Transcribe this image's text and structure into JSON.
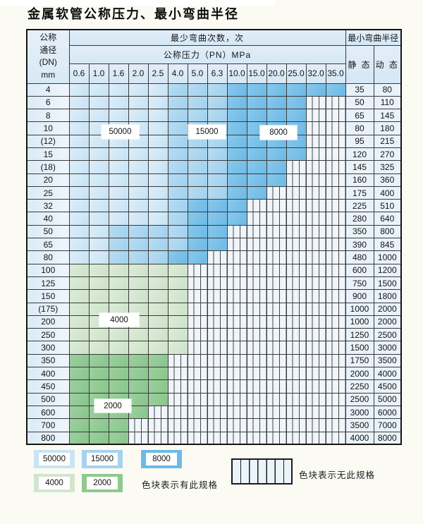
{
  "title": "金属软管公称压力、最小弯曲半径",
  "table": {
    "header": {
      "dn_lines": [
        "公称",
        "通径",
        "(DN)",
        "mm"
      ],
      "bend_cycles_label": "最少弯曲次数，次",
      "pressure_label": "公称压力（PN）MPa",
      "radius_label": "最小弯曲半径",
      "static_label": "静 态",
      "dynamic_label": "动 态",
      "pressure_columns": [
        "0.6",
        "1.0",
        "1.6",
        "2.0",
        "2.5",
        "4.0",
        "5.0",
        "6.3",
        "10.0",
        "15.0",
        "20.0",
        "25.0",
        "32.0",
        "35.0"
      ]
    },
    "zone_codes": {
      "a": "cycles_50000",
      "b": "cycles_15000",
      "c": "cycles_8000",
      "d": "cycles_4000",
      "e": "cycles_2000",
      "x": "no_spec"
    },
    "rows": [
      {
        "dn": "4",
        "cells": "aaaaabbbcccccc",
        "static": "35",
        "dynamic": "80"
      },
      {
        "dn": "6",
        "cells": "aaaaabbbccccxx",
        "static": "50",
        "dynamic": "110"
      },
      {
        "dn": "8",
        "cells": "aaaaabbbccccxx",
        "static": "65",
        "dynamic": "145"
      },
      {
        "dn": "10",
        "cells": "aaaaabbbccccxx",
        "static": "80",
        "dynamic": "180"
      },
      {
        "dn": "(12)",
        "cells": "aaaaabbbccccxx",
        "static": "95",
        "dynamic": "215"
      },
      {
        "dn": "15",
        "cells": "aaaaabbbccccxx",
        "static": "120",
        "dynamic": "270"
      },
      {
        "dn": "(18)",
        "cells": "aaaaabbbcccxxx",
        "static": "145",
        "dynamic": "325"
      },
      {
        "dn": "20",
        "cells": "aaaaabbbcccxxx",
        "static": "160",
        "dynamic": "360"
      },
      {
        "dn": "25",
        "cells": "aaaaabbbccxxxx",
        "static": "175",
        "dynamic": "400"
      },
      {
        "dn": "32",
        "cells": "aaaaabcccxxxxx",
        "static": "225",
        "dynamic": "510"
      },
      {
        "dn": "40",
        "cells": "aaaaabcccxxxxx",
        "static": "280",
        "dynamic": "640"
      },
      {
        "dn": "50",
        "cells": "aabbbbccxxxxxx",
        "static": "350",
        "dynamic": "800"
      },
      {
        "dn": "65",
        "cells": "aabbbbccxxxxxx",
        "static": "390",
        "dynamic": "845"
      },
      {
        "dn": "80",
        "cells": "aabbbccxxxxxxx",
        "static": "480",
        "dynamic": "1000"
      },
      {
        "dn": "100",
        "cells": "ddddddxxxxxxxx",
        "static": "600",
        "dynamic": "1200"
      },
      {
        "dn": "125",
        "cells": "ddddddxxxxxxxx",
        "static": "750",
        "dynamic": "1500"
      },
      {
        "dn": "150",
        "cells": "ddddddxxxxxxxx",
        "static": "900",
        "dynamic": "1800"
      },
      {
        "dn": "(175)",
        "cells": "ddddddxxxxxxxx",
        "static": "1000",
        "dynamic": "2000"
      },
      {
        "dn": "200",
        "cells": "ddddddxxxxxxxx",
        "static": "1000",
        "dynamic": "2000"
      },
      {
        "dn": "250",
        "cells": "ddddddxxxxxxxx",
        "static": "1250",
        "dynamic": "2500"
      },
      {
        "dn": "300",
        "cells": "ddddddxxxxxxxx",
        "static": "1500",
        "dynamic": "3000"
      },
      {
        "dn": "350",
        "cells": "eeeeexxxxxxxxx",
        "static": "1750",
        "dynamic": "3500"
      },
      {
        "dn": "400",
        "cells": "eeeeexxxxxxxxx",
        "static": "2000",
        "dynamic": "4000"
      },
      {
        "dn": "450",
        "cells": "eeeeexxxxxxxxx",
        "static": "2250",
        "dynamic": "4500"
      },
      {
        "dn": "500",
        "cells": "eeeeexxxxxxxxx",
        "static": "2500",
        "dynamic": "5000"
      },
      {
        "dn": "600",
        "cells": "eeeexxxxxxxxxx",
        "static": "3000",
        "dynamic": "6000"
      },
      {
        "dn": "700",
        "cells": "eeexxxxxxxxxxx",
        "static": "3500",
        "dynamic": "7000"
      },
      {
        "dn": "800",
        "cells": "eeexxxxxxxxxxx",
        "static": "4000",
        "dynamic": "8000"
      }
    ]
  },
  "overlays": [
    {
      "text": "50000"
    },
    {
      "text": "15000"
    },
    {
      "text": "8000"
    },
    {
      "text": "4000"
    },
    {
      "text": "2000"
    }
  ],
  "legend": {
    "items": [
      {
        "value": "50000",
        "color": "#c9e4f5"
      },
      {
        "value": "15000",
        "color": "#a5d3ef"
      },
      {
        "value": "8000",
        "color": "#6cbae6"
      },
      {
        "value": "4000",
        "color": "#d2e6cf"
      },
      {
        "value": "2000",
        "color": "#8ec990"
      }
    ],
    "has_spec_text": "色块表示有此规格",
    "no_spec_text": "色块表示无此规格"
  },
  "colors": {
    "cycles_50000": "#c9e4f5",
    "cycles_15000": "#a5d3ef",
    "cycles_8000": "#6cbae6",
    "cycles_4000": "#d2e6cf",
    "cycles_2000": "#8ec990",
    "no_spec_bg": "#eff5fb",
    "grid_line": "#3a3a3a",
    "header_bg": "#dcebf7"
  }
}
